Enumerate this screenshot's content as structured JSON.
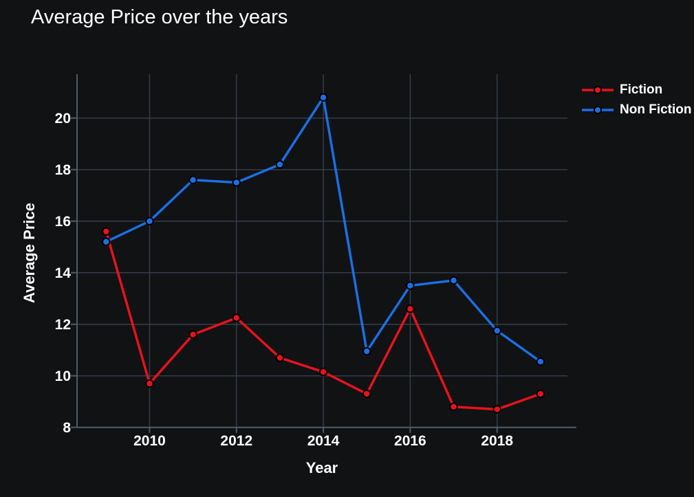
{
  "chart_data": {
    "type": "line",
    "title": "Average Price over the years",
    "xlabel": "Year",
    "ylabel": "Average Price",
    "x": [
      2009,
      2010,
      2011,
      2012,
      2013,
      2014,
      2015,
      2016,
      2017,
      2018,
      2019
    ],
    "series": [
      {
        "name": "Fiction",
        "color": "#e8121c",
        "values": [
          15.6,
          9.7,
          11.6,
          12.25,
          10.7,
          10.15,
          9.3,
          12.6,
          8.8,
          8.7,
          9.3
        ]
      },
      {
        "name": "Non Fiction",
        "color": "#1b6fe4",
        "values": [
          15.2,
          16.0,
          17.6,
          17.5,
          18.2,
          20.8,
          10.95,
          13.5,
          13.7,
          11.75,
          10.55
        ]
      }
    ],
    "xticks": [
      2010,
      2012,
      2014,
      2016,
      2018
    ],
    "yticks": [
      8,
      10,
      12,
      14,
      16,
      18,
      20
    ],
    "xlim": [
      2008.33,
      2019.62
    ],
    "ylim": [
      8,
      21.7
    ],
    "grid": true,
    "marker": "circle",
    "legend_position": "upper-right-outside",
    "colors": {
      "background": "#111214",
      "text": "#ffffff",
      "gridline": "#333e4b",
      "axis": "#4e5c6c"
    }
  }
}
